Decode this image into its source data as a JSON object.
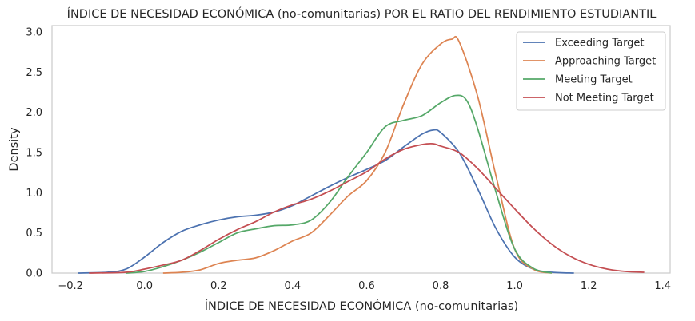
{
  "chart_data": {
    "type": "line",
    "title": "ÍNDICE DE NECESIDAD ECONÓMICA (no-comunitarias) POR EL RATIO DEL RENDIMIENTO ESTUDIANTIL",
    "xlabel": "ÍNDICE DE NECESIDAD ECONÓMICA (no-comunitarias)",
    "ylabel": "Density",
    "xlim": [
      -0.25,
      1.42
    ],
    "ylim": [
      0,
      3.08
    ],
    "xticks": [
      -0.2,
      0.0,
      0.2,
      0.4,
      0.6,
      0.8,
      1.0,
      1.2,
      1.4
    ],
    "xtick_labels": [
      "−0.2",
      "0.0",
      "0.2",
      "0.4",
      "0.6",
      "0.8",
      "1.0",
      "1.2",
      "1.4"
    ],
    "yticks": [
      0.0,
      0.5,
      1.0,
      1.5,
      2.0,
      2.5,
      3.0
    ],
    "ytick_labels": [
      "0.0",
      "0.5",
      "1.0",
      "1.5",
      "2.0",
      "2.5",
      "3.0"
    ],
    "grid": false,
    "legend_position": "top-right",
    "series": [
      {
        "name": "Exceeding Target",
        "color": "#4c72b0",
        "points": [
          [
            -0.18,
            0
          ],
          [
            -0.1,
            0.01
          ],
          [
            -0.05,
            0.05
          ],
          [
            0.0,
            0.2
          ],
          [
            0.05,
            0.38
          ],
          [
            0.1,
            0.52
          ],
          [
            0.15,
            0.6
          ],
          [
            0.2,
            0.66
          ],
          [
            0.25,
            0.7
          ],
          [
            0.3,
            0.72
          ],
          [
            0.35,
            0.76
          ],
          [
            0.4,
            0.84
          ],
          [
            0.45,
            0.96
          ],
          [
            0.5,
            1.08
          ],
          [
            0.55,
            1.19
          ],
          [
            0.6,
            1.29
          ],
          [
            0.65,
            1.4
          ],
          [
            0.7,
            1.57
          ],
          [
            0.75,
            1.73
          ],
          [
            0.78,
            1.78
          ],
          [
            0.8,
            1.75
          ],
          [
            0.85,
            1.5
          ],
          [
            0.9,
            1.05
          ],
          [
            0.95,
            0.55
          ],
          [
            1.0,
            0.2
          ],
          [
            1.05,
            0.05
          ],
          [
            1.1,
            0.01
          ],
          [
            1.16,
            0
          ]
        ]
      },
      {
        "name": "Approaching Target",
        "color": "#dd8452",
        "points": [
          [
            0.05,
            0
          ],
          [
            0.1,
            0.01
          ],
          [
            0.15,
            0.04
          ],
          [
            0.2,
            0.12
          ],
          [
            0.25,
            0.16
          ],
          [
            0.3,
            0.19
          ],
          [
            0.35,
            0.28
          ],
          [
            0.4,
            0.4
          ],
          [
            0.45,
            0.5
          ],
          [
            0.5,
            0.72
          ],
          [
            0.55,
            0.96
          ],
          [
            0.6,
            1.15
          ],
          [
            0.65,
            1.5
          ],
          [
            0.7,
            2.1
          ],
          [
            0.75,
            2.6
          ],
          [
            0.8,
            2.85
          ],
          [
            0.83,
            2.91
          ],
          [
            0.85,
            2.88
          ],
          [
            0.9,
            2.2
          ],
          [
            0.95,
            1.2
          ],
          [
            1.0,
            0.3
          ],
          [
            1.05,
            0.05
          ],
          [
            1.1,
            0
          ]
        ]
      },
      {
        "name": "Meeting Target",
        "color": "#55a868",
        "points": [
          [
            -0.05,
            0
          ],
          [
            0.0,
            0.02
          ],
          [
            0.05,
            0.08
          ],
          [
            0.1,
            0.16
          ],
          [
            0.15,
            0.26
          ],
          [
            0.2,
            0.38
          ],
          [
            0.25,
            0.5
          ],
          [
            0.3,
            0.55
          ],
          [
            0.35,
            0.59
          ],
          [
            0.4,
            0.6
          ],
          [
            0.45,
            0.66
          ],
          [
            0.5,
            0.88
          ],
          [
            0.55,
            1.2
          ],
          [
            0.6,
            1.5
          ],
          [
            0.65,
            1.82
          ],
          [
            0.7,
            1.9
          ],
          [
            0.75,
            1.96
          ],
          [
            0.8,
            2.12
          ],
          [
            0.84,
            2.21
          ],
          [
            0.87,
            2.15
          ],
          [
            0.9,
            1.8
          ],
          [
            0.95,
            1.0
          ],
          [
            1.0,
            0.3
          ],
          [
            1.05,
            0.06
          ],
          [
            1.1,
            0
          ]
        ]
      },
      {
        "name": "Not Meeting Target",
        "color": "#c44e52",
        "points": [
          [
            -0.15,
            0
          ],
          [
            -0.05,
            0.01
          ],
          [
            0.0,
            0.05
          ],
          [
            0.05,
            0.1
          ],
          [
            0.1,
            0.16
          ],
          [
            0.15,
            0.28
          ],
          [
            0.2,
            0.42
          ],
          [
            0.25,
            0.54
          ],
          [
            0.3,
            0.64
          ],
          [
            0.35,
            0.76
          ],
          [
            0.4,
            0.85
          ],
          [
            0.45,
            0.92
          ],
          [
            0.5,
            1.02
          ],
          [
            0.55,
            1.14
          ],
          [
            0.6,
            1.26
          ],
          [
            0.65,
            1.42
          ],
          [
            0.7,
            1.54
          ],
          [
            0.75,
            1.6
          ],
          [
            0.78,
            1.61
          ],
          [
            0.8,
            1.58
          ],
          [
            0.85,
            1.5
          ],
          [
            0.9,
            1.3
          ],
          [
            0.95,
            1.05
          ],
          [
            1.0,
            0.8
          ],
          [
            1.05,
            0.56
          ],
          [
            1.1,
            0.36
          ],
          [
            1.15,
            0.21
          ],
          [
            1.2,
            0.11
          ],
          [
            1.25,
            0.05
          ],
          [
            1.3,
            0.02
          ],
          [
            1.35,
            0.01
          ]
        ]
      }
    ]
  }
}
